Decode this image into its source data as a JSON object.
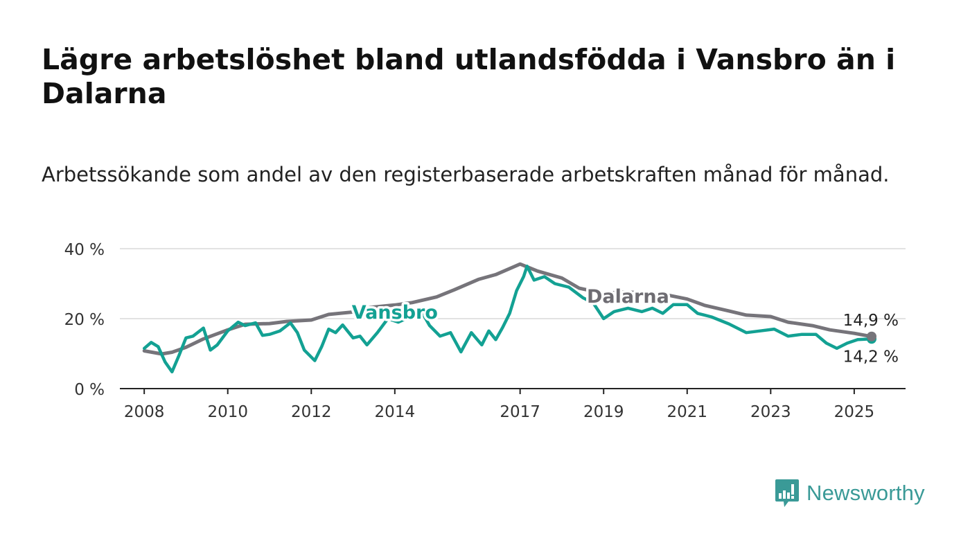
{
  "title": "Lägre arbetslöshet bland utlandsfödda i Vansbro än i Dalarna",
  "subtitle": "Arbetssökande som andel av den registerbaserade arbetskraften månad för månad.",
  "brand": {
    "name": "Newsworthy",
    "icon": "newsworthy-logo-icon",
    "color": "#3a9a97"
  },
  "chart_data": {
    "type": "line",
    "x_axis": {
      "type": "date",
      "range": [
        "2007-06",
        "2026-06"
      ],
      "tick_labels": [
        "2008",
        "2010",
        "2012",
        "2014",
        "2017",
        "2019",
        "2021",
        "2023",
        "2025"
      ]
    },
    "y_axis": {
      "range": [
        0,
        40
      ],
      "ticks": [
        0,
        20,
        40
      ],
      "tick_labels": [
        "0 %",
        "20 %",
        "40 %"
      ]
    },
    "grid": true,
    "series": [
      {
        "name": "Dalarna",
        "color": "#76747a",
        "label_color": "#6e6c72",
        "last_value_label": "14,9 %",
        "points": [
          [
            "2008-01",
            10.8
          ],
          [
            "2008-06",
            9.9
          ],
          [
            "2008-09",
            10.4
          ],
          [
            "2009-01",
            11.8
          ],
          [
            "2009-06",
            14.2
          ],
          [
            "2010-01",
            16.8
          ],
          [
            "2010-06",
            18.4
          ],
          [
            "2011-01",
            18.6
          ],
          [
            "2011-06",
            19.2
          ],
          [
            "2012-01",
            19.6
          ],
          [
            "2012-06",
            21.2
          ],
          [
            "2013-01",
            21.9
          ],
          [
            "2013-06",
            23.2
          ],
          [
            "2014-01",
            23.9
          ],
          [
            "2014-06",
            24.6
          ],
          [
            "2015-01",
            26.2
          ],
          [
            "2015-06",
            28.2
          ],
          [
            "2016-01",
            31.2
          ],
          [
            "2016-06",
            32.6
          ],
          [
            "2017-01",
            35.6
          ],
          [
            "2017-06",
            33.6
          ],
          [
            "2018-01",
            31.6
          ],
          [
            "2018-06",
            28.7
          ],
          [
            "2019-01",
            27.2
          ],
          [
            "2019-06",
            27.6
          ],
          [
            "2020-01",
            27.4
          ],
          [
            "2020-06",
            27.0
          ],
          [
            "2021-01",
            25.6
          ],
          [
            "2021-06",
            23.8
          ],
          [
            "2022-01",
            22.2
          ],
          [
            "2022-06",
            21.0
          ],
          [
            "2023-01",
            20.6
          ],
          [
            "2023-06",
            19.0
          ],
          [
            "2024-01",
            18.0
          ],
          [
            "2024-06",
            16.8
          ],
          [
            "2025-01",
            15.8
          ],
          [
            "2025-06",
            14.9
          ]
        ]
      },
      {
        "name": "Vansbro",
        "color": "#13a193",
        "label_color": "#13a193",
        "last_value_label": "14,2 %",
        "points": [
          [
            "2008-01",
            11.5
          ],
          [
            "2008-03",
            13.2
          ],
          [
            "2008-05",
            12.0
          ],
          [
            "2008-07",
            7.6
          ],
          [
            "2008-09",
            4.8
          ],
          [
            "2008-11",
            9.5
          ],
          [
            "2009-01",
            14.5
          ],
          [
            "2009-03",
            15.0
          ],
          [
            "2009-06",
            17.3
          ],
          [
            "2009-08",
            11.0
          ],
          [
            "2009-10",
            12.5
          ],
          [
            "2010-01",
            16.5
          ],
          [
            "2010-04",
            19.0
          ],
          [
            "2010-06",
            18.0
          ],
          [
            "2010-09",
            18.8
          ],
          [
            "2010-11",
            15.2
          ],
          [
            "2011-01",
            15.5
          ],
          [
            "2011-04",
            16.5
          ],
          [
            "2011-07",
            18.8
          ],
          [
            "2011-09",
            16.0
          ],
          [
            "2011-11",
            11.0
          ],
          [
            "2012-02",
            8.0
          ],
          [
            "2012-04",
            12.0
          ],
          [
            "2012-06",
            17.0
          ],
          [
            "2012-08",
            16.0
          ],
          [
            "2012-10",
            18.2
          ],
          [
            "2013-01",
            14.5
          ],
          [
            "2013-03",
            15.0
          ],
          [
            "2013-05",
            12.5
          ],
          [
            "2013-08",
            16.0
          ],
          [
            "2013-11",
            20.0
          ],
          [
            "2014-02",
            19.0
          ],
          [
            "2014-06",
            20.8
          ],
          [
            "2014-09",
            21.5
          ],
          [
            "2014-11",
            18.0
          ],
          [
            "2015-02",
            15.0
          ],
          [
            "2015-05",
            16.0
          ],
          [
            "2015-08",
            10.5
          ],
          [
            "2015-11",
            16.0
          ],
          [
            "2016-02",
            12.5
          ],
          [
            "2016-04",
            16.5
          ],
          [
            "2016-06",
            14.0
          ],
          [
            "2016-08",
            17.5
          ],
          [
            "2016-10",
            21.5
          ],
          [
            "2016-12",
            28.0
          ],
          [
            "2017-02",
            32.0
          ],
          [
            "2017-03",
            35.0
          ],
          [
            "2017-05",
            31.0
          ],
          [
            "2017-08",
            32.0
          ],
          [
            "2017-11",
            30.0
          ],
          [
            "2018-03",
            29.0
          ],
          [
            "2018-07",
            26.0
          ],
          [
            "2018-10",
            24.5
          ],
          [
            "2019-01",
            20.0
          ],
          [
            "2019-04",
            22.0
          ],
          [
            "2019-08",
            23.0
          ],
          [
            "2019-12",
            22.0
          ],
          [
            "2020-03",
            23.0
          ],
          [
            "2020-06",
            21.5
          ],
          [
            "2020-09",
            24.0
          ],
          [
            "2021-01",
            24.0
          ],
          [
            "2021-04",
            21.5
          ],
          [
            "2021-08",
            20.5
          ],
          [
            "2022-01",
            18.5
          ],
          [
            "2022-06",
            16.0
          ],
          [
            "2022-10",
            16.5
          ],
          [
            "2023-02",
            17.0
          ],
          [
            "2023-06",
            15.0
          ],
          [
            "2023-10",
            15.5
          ],
          [
            "2024-02",
            15.5
          ],
          [
            "2024-05",
            13.0
          ],
          [
            "2024-08",
            11.5
          ],
          [
            "2024-11",
            13.0
          ],
          [
            "2025-02",
            14.0
          ],
          [
            "2025-06",
            14.2
          ]
        ]
      }
    ],
    "series_labels": [
      {
        "series": "Vansbro",
        "text": "Vansbro"
      },
      {
        "series": "Dalarna",
        "text": "Dalarna"
      }
    ]
  }
}
